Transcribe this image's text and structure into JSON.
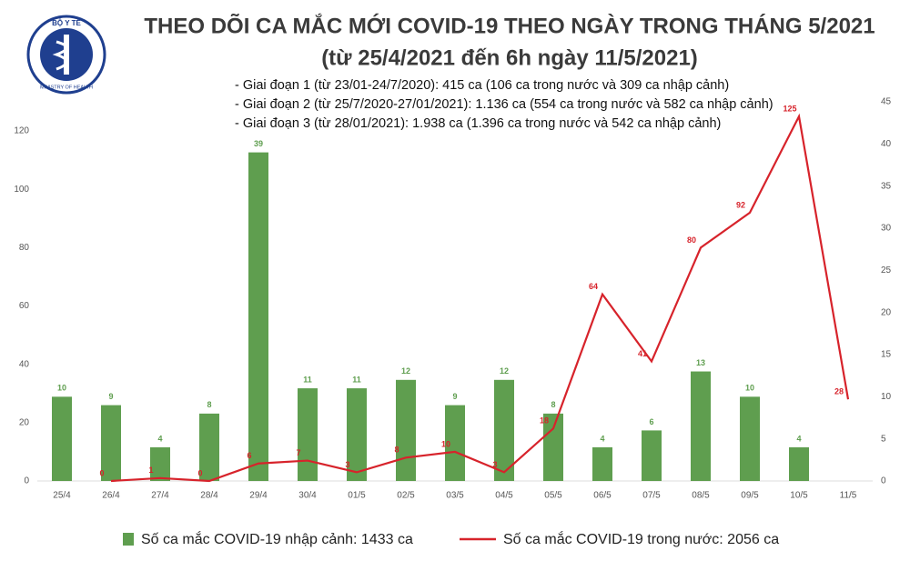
{
  "chart_data": {
    "type": "bar-line",
    "title": "THEO DÕI CA MẮC MỚI COVID-19 THEO NGÀY TRONG THÁNG 5/2021",
    "subtitle": "(từ 25/4/2021 đến 6h ngày 11/5/2021)",
    "logo_texts": [
      "BỘ Y TẾ",
      "MINISTRY OF HEALTH"
    ],
    "annotations": [
      "- Giai đoạn 1 (từ 23/01-24/7/2020): 415 ca (106 ca trong nước và 309 ca nhập cảnh)",
      "- Giai đoạn 2 (từ 25/7/2020-27/01/2021): 1.136 ca (554 ca trong nước và 582 ca nhập cảnh)",
      "- Giai đoạn 3 (từ 28/01/2021): 1.938 ca (1.396 ca trong nước và 542 ca nhập cảnh)"
    ],
    "categories": [
      "25/4",
      "26/4",
      "27/4",
      "28/4",
      "29/4",
      "30/4",
      "01/5",
      "02/5",
      "03/5",
      "04/5",
      "05/5",
      "06/5",
      "07/5",
      "08/5",
      "09/5",
      "10/5",
      "11/5"
    ],
    "series": [
      {
        "name": "Số ca mắc COVID-19 nhập cảnh: 1433 ca",
        "type": "bar",
        "axis": "y2",
        "color": "#5f9e4f",
        "values": [
          10,
          9,
          4,
          8,
          39,
          11,
          11,
          12,
          9,
          12,
          8,
          4,
          6,
          13,
          10,
          4,
          null
        ]
      },
      {
        "name": "Số ca mắc COVID-19 trong nước: 2056 ca",
        "type": "line",
        "axis": "y",
        "color": "#d7232b",
        "values": [
          null,
          0,
          1,
          0,
          6,
          7,
          3,
          8,
          10,
          3,
          18,
          64,
          41,
          80,
          92,
          125,
          28
        ]
      }
    ],
    "ylim": [
      0,
      130
    ],
    "yticks": [
      0,
      20,
      40,
      60,
      80,
      100,
      120
    ],
    "y2lim": [
      0,
      45
    ],
    "y2ticks": [
      0,
      5,
      10,
      15,
      20,
      25,
      30,
      35,
      40,
      45
    ],
    "grid": false
  }
}
